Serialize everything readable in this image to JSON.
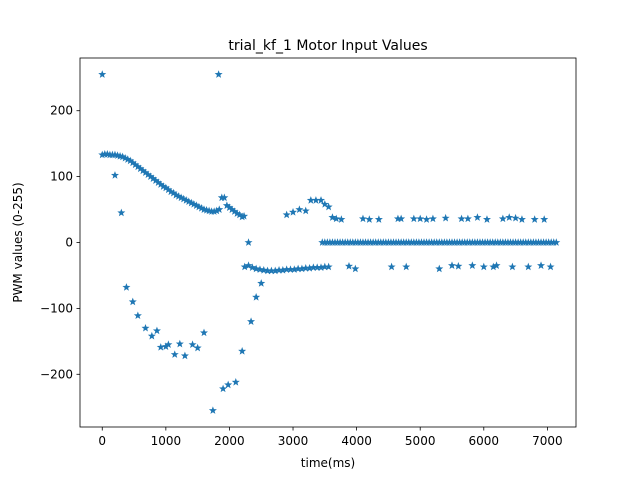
{
  "chart_data": {
    "type": "scatter",
    "title": "trial_kf_1 Motor Input Values",
    "xlabel": "time(ms)",
    "ylabel": "PWM values (0-255)",
    "xlim": [
      -350,
      7450
    ],
    "ylim": [
      -280,
      280
    ],
    "x_ticks": [
      0,
      1000,
      2000,
      3000,
      4000,
      5000,
      6000,
      7000
    ],
    "y_ticks": [
      -200,
      -100,
      0,
      100,
      200
    ],
    "x_tick_labels": [
      "0",
      "1000",
      "2000",
      "3000",
      "4000",
      "5000",
      "6000",
      "7000"
    ],
    "y_tick_labels": [
      "−200",
      "−100",
      "0",
      "100",
      "200"
    ],
    "marker": "star",
    "grid": false,
    "color": "#1f77b4",
    "series": [
      {
        "points": [
          [
            0,
            255
          ],
          [
            1830,
            255
          ],
          [
            0,
            133
          ],
          [
            40,
            134
          ],
          [
            80,
            134
          ],
          [
            120,
            133
          ],
          [
            160,
            133
          ],
          [
            200,
            133
          ],
          [
            240,
            132
          ],
          [
            280,
            131
          ],
          [
            320,
            130
          ],
          [
            360,
            128
          ],
          [
            400,
            126
          ],
          [
            440,
            124
          ],
          [
            480,
            121
          ],
          [
            520,
            118
          ],
          [
            560,
            115
          ],
          [
            600,
            112
          ],
          [
            640,
            109
          ],
          [
            680,
            106
          ],
          [
            720,
            103
          ],
          [
            760,
            100
          ],
          [
            800,
            97
          ],
          [
            840,
            94
          ],
          [
            880,
            91
          ],
          [
            920,
            88
          ],
          [
            960,
            85
          ],
          [
            1000,
            83
          ],
          [
            1040,
            80
          ],
          [
            1080,
            77
          ],
          [
            1120,
            75
          ],
          [
            1160,
            72
          ],
          [
            1200,
            70
          ],
          [
            1240,
            68
          ],
          [
            1280,
            66
          ],
          [
            1320,
            64
          ],
          [
            1360,
            62
          ],
          [
            1400,
            60
          ],
          [
            1440,
            58
          ],
          [
            1480,
            56
          ],
          [
            1520,
            54
          ],
          [
            1560,
            52
          ],
          [
            1600,
            50
          ],
          [
            1640,
            49
          ],
          [
            1680,
            48
          ],
          [
            1720,
            47
          ],
          [
            1760,
            47
          ],
          [
            1800,
            48
          ],
          [
            1840,
            50
          ],
          [
            1880,
            68
          ],
          [
            1920,
            68
          ],
          [
            1960,
            56
          ],
          [
            2000,
            53
          ],
          [
            2040,
            50
          ],
          [
            2080,
            47
          ],
          [
            2120,
            44
          ],
          [
            2160,
            42
          ],
          [
            2200,
            39
          ],
          [
            2230,
            40
          ],
          [
            2300,
            0
          ],
          [
            200,
            102
          ],
          [
            300,
            45
          ],
          [
            380,
            -68
          ],
          [
            480,
            -90
          ],
          [
            560,
            -111
          ],
          [
            680,
            -130
          ],
          [
            780,
            -142
          ],
          [
            860,
            -134
          ],
          [
            920,
            -159
          ],
          [
            1000,
            -158
          ],
          [
            1040,
            -155
          ],
          [
            1140,
            -170
          ],
          [
            1220,
            -154
          ],
          [
            1300,
            -172
          ],
          [
            1420,
            -155
          ],
          [
            1500,
            -160
          ],
          [
            1600,
            -137
          ],
          [
            1740,
            -255
          ],
          [
            1900,
            -222
          ],
          [
            1980,
            -216
          ],
          [
            2100,
            -212
          ],
          [
            2200,
            -165
          ],
          [
            2340,
            -120
          ],
          [
            2420,
            -83
          ],
          [
            2500,
            -62
          ],
          [
            2240,
            -37
          ],
          [
            2300,
            -35
          ],
          [
            2360,
            -38
          ],
          [
            2420,
            -40
          ],
          [
            2480,
            -41
          ],
          [
            2540,
            -42
          ],
          [
            2600,
            -43
          ],
          [
            2660,
            -43
          ],
          [
            2720,
            -43
          ],
          [
            2780,
            -42
          ],
          [
            2840,
            -42
          ],
          [
            2900,
            -41
          ],
          [
            2960,
            -41
          ],
          [
            3020,
            -41
          ],
          [
            3080,
            -40
          ],
          [
            3140,
            -40
          ],
          [
            3200,
            -39
          ],
          [
            3260,
            -39
          ],
          [
            3320,
            -38
          ],
          [
            3380,
            -38
          ],
          [
            3440,
            -38
          ],
          [
            3500,
            -37
          ],
          [
            3560,
            -37
          ],
          [
            2900,
            42
          ],
          [
            3000,
            46
          ],
          [
            3100,
            50
          ],
          [
            3200,
            48
          ],
          [
            3280,
            64
          ],
          [
            3360,
            64
          ],
          [
            3440,
            64
          ],
          [
            3500,
            58
          ],
          [
            3560,
            54
          ],
          [
            3620,
            38
          ],
          [
            3680,
            36
          ],
          [
            3760,
            35
          ],
          [
            3880,
            -36
          ],
          [
            3980,
            -40
          ],
          [
            4100,
            36
          ],
          [
            4200,
            35
          ],
          [
            4350,
            35
          ],
          [
            4550,
            -37
          ],
          [
            4650,
            36
          ],
          [
            4700,
            36
          ],
          [
            4780,
            -37
          ],
          [
            4900,
            36
          ],
          [
            5000,
            36
          ],
          [
            5100,
            35
          ],
          [
            5200,
            36
          ],
          [
            5300,
            -40
          ],
          [
            5400,
            37
          ],
          [
            5500,
            -35
          ],
          [
            5600,
            -36
          ],
          [
            5650,
            36
          ],
          [
            5750,
            36
          ],
          [
            5820,
            -35
          ],
          [
            5900,
            38
          ],
          [
            6000,
            -37
          ],
          [
            6050,
            35
          ],
          [
            6150,
            -37
          ],
          [
            6200,
            -35
          ],
          [
            6300,
            36
          ],
          [
            6400,
            38
          ],
          [
            6450,
            -37
          ],
          [
            6500,
            37
          ],
          [
            6600,
            35
          ],
          [
            6700,
            -37
          ],
          [
            6800,
            35
          ],
          [
            6900,
            -35
          ],
          [
            6950,
            35
          ],
          [
            7050,
            -37
          ]
        ],
        "dense_run": {
          "x_start": 3460,
          "x_end": 7140,
          "step": 40,
          "y": 0
        }
      }
    ]
  }
}
